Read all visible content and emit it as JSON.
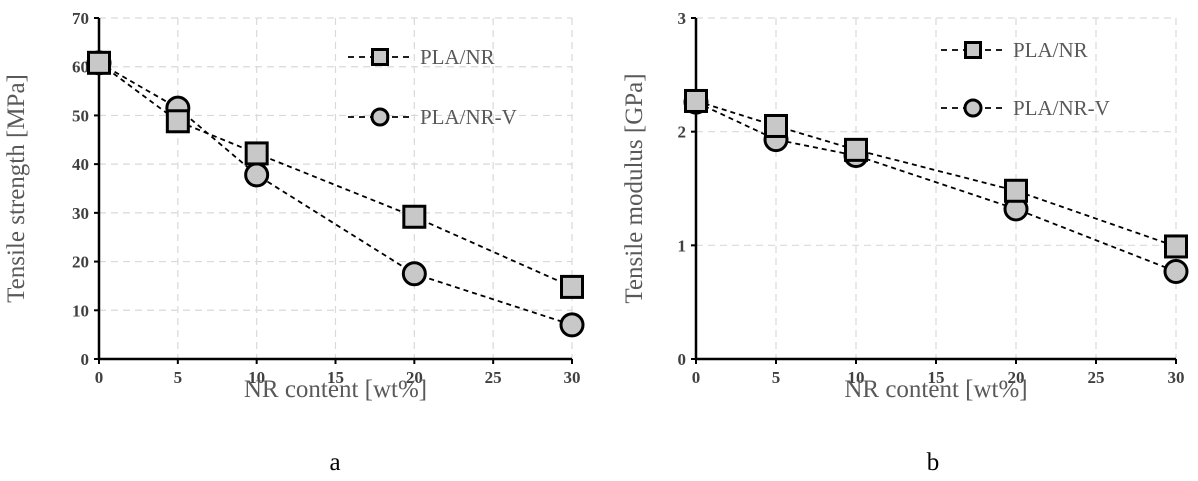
{
  "chart_data": [
    {
      "type": "line",
      "panel_label": "a",
      "xlabel": "NR content [wt%]",
      "ylabel": "Tensile strength [MPa]",
      "xlim": [
        0,
        30
      ],
      "ylim": [
        0,
        70
      ],
      "xticks": [
        0,
        5,
        10,
        15,
        20,
        25,
        30
      ],
      "yticks": [
        0,
        10,
        20,
        30,
        40,
        50,
        60,
        70
      ],
      "grid": true,
      "legend_position": "top-right",
      "series": [
        {
          "name": "PLA/NR",
          "marker": "square",
          "x": [
            0,
            5,
            10,
            20,
            30
          ],
          "y": [
            60.8,
            48.8,
            42.2,
            29.2,
            14.8
          ]
        },
        {
          "name": "PLA/NR-V",
          "marker": "circle",
          "x": [
            0,
            5,
            10,
            20,
            30
          ],
          "y": [
            60.8,
            51.5,
            37.8,
            17.5,
            7.0
          ]
        }
      ]
    },
    {
      "type": "line",
      "panel_label": "b",
      "xlabel": "NR content [wt%]",
      "ylabel": "Tensile modulus [GPa]",
      "xlim": [
        0,
        30
      ],
      "ylim": [
        0,
        3
      ],
      "xticks": [
        0,
        5,
        10,
        15,
        20,
        25,
        30
      ],
      "yticks": [
        0,
        1,
        2,
        3
      ],
      "grid": true,
      "legend_position": "top-right",
      "series": [
        {
          "name": "PLA/NR",
          "marker": "square",
          "x": [
            0,
            5,
            10,
            20,
            30
          ],
          "y": [
            2.27,
            2.05,
            1.84,
            1.48,
            0.99
          ]
        },
        {
          "name": "PLA/NR-V",
          "marker": "circle",
          "x": [
            0,
            5,
            10,
            20,
            30
          ],
          "y": [
            2.26,
            1.93,
            1.79,
            1.32,
            0.77
          ]
        }
      ]
    }
  ],
  "colors": {
    "marker_fill": "#c8c8c8",
    "stroke": "#000000",
    "grid": "#d9d9d9"
  }
}
